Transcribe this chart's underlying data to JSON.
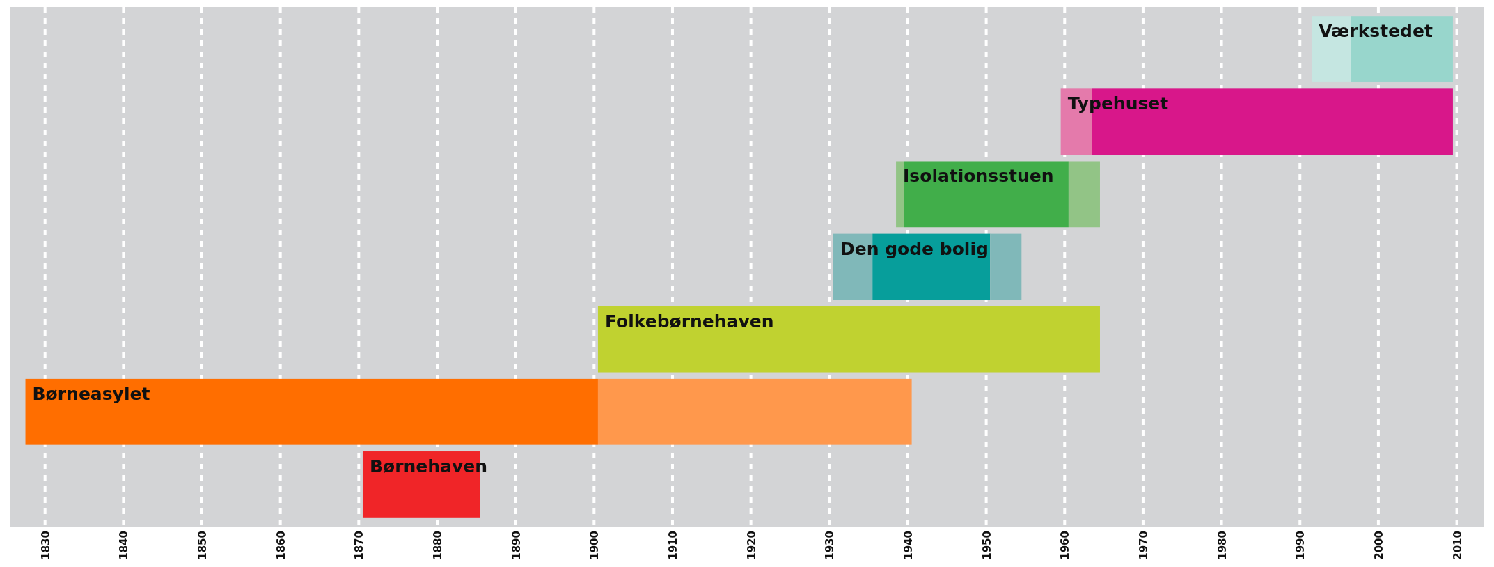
{
  "chart_data": {
    "type": "bar",
    "orientation": "horizontal",
    "categories": [
      "Værkstedet",
      "Typehuset",
      "Isolationsstuen",
      "Den gode bolig",
      "Folkebørnehaven",
      "Børneasylet",
      "Børnehaven"
    ],
    "series": [
      {
        "colors": [
          "#c5e6e1",
          "#e47aab",
          "#92c486",
          "#80b8b9",
          null,
          null,
          null
        ],
        "base": [
          1991.5,
          1959.5,
          1938.5,
          1930.5,
          null,
          null,
          null
        ],
        "values": [
          5,
          4,
          1,
          5,
          null,
          null,
          null
        ]
      },
      {
        "colors": [
          "#98d6cc",
          "#d8178a",
          "#41ae4a",
          "#079e9b",
          "#c0d230",
          "#ff6e00",
          "#f02528"
        ],
        "base": [
          1996.5,
          1963.5,
          1939.5,
          1935.5,
          1900.5,
          1827.5,
          1870.5
        ],
        "values": [
          13,
          46,
          21,
          15,
          64,
          73,
          15
        ]
      },
      {
        "colors": [
          null,
          null,
          "#92c486",
          "#80b8b9",
          null,
          "#ff984c",
          null
        ],
        "base": [
          null,
          null,
          1960.5,
          1950.5,
          null,
          1900.5,
          null
        ],
        "values": [
          null,
          null,
          4,
          4,
          null,
          40,
          null
        ]
      }
    ],
    "xlim": [
      1825.5,
      2013.5
    ],
    "xticks": [
      1830,
      1840,
      1850,
      1860,
      1870,
      1880,
      1890,
      1900,
      1910,
      1920,
      1930,
      1940,
      1950,
      1960,
      1970,
      1980,
      1990,
      2000,
      2010
    ],
    "grid": "x"
  }
}
